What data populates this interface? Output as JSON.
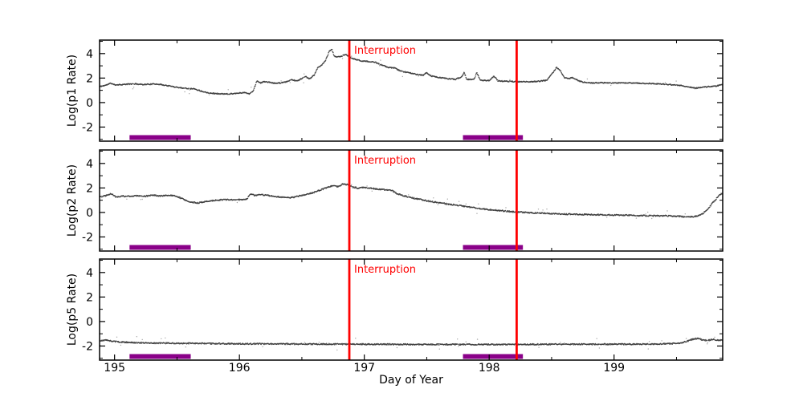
{
  "figure": {
    "xlabel": "Day of Year",
    "background": "#ffffff"
  },
  "chart_data": {
    "type": "scatter",
    "title": "",
    "xlabel": "Day of Year",
    "xlim": [
      194.88,
      199.87
    ],
    "ylim": [
      -3.15,
      5.1
    ],
    "x_major_ticks": [
      195,
      196,
      197,
      198,
      199
    ],
    "x_minor_tick_step": 0.5,
    "y_major_ticks": [
      -2,
      0,
      2,
      4
    ],
    "y_minor_tick_step": 1,
    "grid": false,
    "legend": false,
    "point_color": "#3a3a3a",
    "outlier_color": "#9b9b9b",
    "axis_color": "#000000",
    "panels": [
      {
        "name": "p1",
        "ylabel": "Log(p1 Rate)",
        "noise": 0.04,
        "seed": 11,
        "points": [
          [
            194.88,
            1.3
          ],
          [
            194.93,
            1.42
          ],
          [
            194.97,
            1.58
          ],
          [
            195.0,
            1.45
          ],
          [
            195.06,
            1.47
          ],
          [
            195.1,
            1.5
          ],
          [
            195.16,
            1.53
          ],
          [
            195.22,
            1.48
          ],
          [
            195.28,
            1.5
          ],
          [
            195.34,
            1.52
          ],
          [
            195.4,
            1.42
          ],
          [
            195.46,
            1.32
          ],
          [
            195.52,
            1.22
          ],
          [
            195.58,
            1.16
          ],
          [
            195.64,
            1.12
          ],
          [
            195.7,
            0.92
          ],
          [
            195.76,
            0.78
          ],
          [
            195.82,
            0.73
          ],
          [
            195.88,
            0.7
          ],
          [
            195.94,
            0.73
          ],
          [
            196.0,
            0.78
          ],
          [
            196.04,
            0.82
          ],
          [
            196.08,
            0.72
          ],
          [
            196.11,
            0.95
          ],
          [
            196.14,
            1.78
          ],
          [
            196.17,
            1.6
          ],
          [
            196.2,
            1.72
          ],
          [
            196.24,
            1.65
          ],
          [
            196.28,
            1.58
          ],
          [
            196.33,
            1.6
          ],
          [
            196.38,
            1.7
          ],
          [
            196.42,
            1.88
          ],
          [
            196.46,
            1.75
          ],
          [
            196.5,
            1.98
          ],
          [
            196.53,
            2.12
          ],
          [
            196.56,
            1.92
          ],
          [
            196.6,
            2.25
          ],
          [
            196.63,
            2.9
          ],
          [
            196.66,
            3.05
          ],
          [
            196.69,
            3.45
          ],
          [
            196.72,
            4.2
          ],
          [
            196.74,
            4.35
          ],
          [
            196.76,
            3.78
          ],
          [
            196.79,
            3.72
          ],
          [
            196.82,
            3.8
          ],
          [
            196.85,
            3.95
          ],
          [
            196.88,
            3.72
          ],
          [
            196.92,
            3.55
          ],
          [
            196.97,
            3.42
          ],
          [
            197.03,
            3.35
          ],
          [
            197.09,
            3.28
          ],
          [
            197.14,
            3.05
          ],
          [
            197.19,
            2.88
          ],
          [
            197.24,
            2.83
          ],
          [
            197.29,
            2.58
          ],
          [
            197.35,
            2.45
          ],
          [
            197.41,
            2.32
          ],
          [
            197.47,
            2.22
          ],
          [
            197.5,
            2.45
          ],
          [
            197.53,
            2.18
          ],
          [
            197.6,
            2.05
          ],
          [
            197.67,
            1.95
          ],
          [
            197.73,
            1.9
          ],
          [
            197.78,
            2.1
          ],
          [
            197.8,
            2.5
          ],
          [
            197.82,
            1.88
          ],
          [
            197.88,
            1.9
          ],
          [
            197.9,
            2.45
          ],
          [
            197.93,
            1.83
          ],
          [
            198.0,
            1.8
          ],
          [
            198.04,
            2.15
          ],
          [
            198.07,
            1.78
          ],
          [
            198.13,
            1.74
          ],
          [
            198.19,
            1.72
          ],
          [
            198.25,
            1.7
          ],
          [
            198.32,
            1.7
          ],
          [
            198.4,
            1.74
          ],
          [
            198.46,
            1.82
          ],
          [
            198.5,
            2.3
          ],
          [
            198.54,
            2.88
          ],
          [
            198.57,
            2.6
          ],
          [
            198.6,
            2.05
          ],
          [
            198.64,
            1.95
          ],
          [
            198.67,
            2.05
          ],
          [
            198.71,
            1.8
          ],
          [
            198.76,
            1.66
          ],
          [
            198.82,
            1.6
          ],
          [
            198.9,
            1.63
          ],
          [
            198.98,
            1.58
          ],
          [
            199.06,
            1.62
          ],
          [
            199.14,
            1.6
          ],
          [
            199.22,
            1.57
          ],
          [
            199.3,
            1.55
          ],
          [
            199.38,
            1.52
          ],
          [
            199.46,
            1.45
          ],
          [
            199.54,
            1.38
          ],
          [
            199.6,
            1.28
          ],
          [
            199.65,
            1.17
          ],
          [
            199.7,
            1.25
          ],
          [
            199.76,
            1.3
          ],
          [
            199.82,
            1.35
          ],
          [
            199.87,
            1.48
          ]
        ]
      },
      {
        "name": "p2",
        "ylabel": "Log(p2 Rate)",
        "noise": 0.05,
        "seed": 22,
        "points": [
          [
            194.88,
            1.3
          ],
          [
            194.93,
            1.38
          ],
          [
            194.97,
            1.55
          ],
          [
            195.01,
            1.28
          ],
          [
            195.07,
            1.33
          ],
          [
            195.13,
            1.3
          ],
          [
            195.19,
            1.38
          ],
          [
            195.25,
            1.33
          ],
          [
            195.31,
            1.42
          ],
          [
            195.37,
            1.35
          ],
          [
            195.43,
            1.4
          ],
          [
            195.48,
            1.35
          ],
          [
            195.52,
            1.22
          ],
          [
            195.57,
            1.0
          ],
          [
            195.62,
            0.82
          ],
          [
            195.67,
            0.78
          ],
          [
            195.72,
            0.88
          ],
          [
            195.78,
            0.97
          ],
          [
            195.84,
            1.02
          ],
          [
            195.9,
            1.05
          ],
          [
            195.96,
            1.02
          ],
          [
            196.02,
            1.05
          ],
          [
            196.06,
            1.08
          ],
          [
            196.09,
            1.55
          ],
          [
            196.12,
            1.38
          ],
          [
            196.16,
            1.45
          ],
          [
            196.21,
            1.42
          ],
          [
            196.26,
            1.35
          ],
          [
            196.31,
            1.28
          ],
          [
            196.36,
            1.22
          ],
          [
            196.41,
            1.2
          ],
          [
            196.47,
            1.32
          ],
          [
            196.53,
            1.45
          ],
          [
            196.59,
            1.62
          ],
          [
            196.65,
            1.85
          ],
          [
            196.7,
            2.02
          ],
          [
            196.75,
            2.18
          ],
          [
            196.79,
            2.1
          ],
          [
            196.83,
            2.32
          ],
          [
            196.87,
            2.28
          ],
          [
            196.91,
            2.08
          ],
          [
            196.95,
            1.98
          ],
          [
            197.0,
            2.05
          ],
          [
            197.05,
            1.98
          ],
          [
            197.11,
            1.9
          ],
          [
            197.17,
            1.85
          ],
          [
            197.22,
            1.8
          ],
          [
            197.26,
            1.55
          ],
          [
            197.31,
            1.38
          ],
          [
            197.37,
            1.22
          ],
          [
            197.43,
            1.1
          ],
          [
            197.5,
            0.95
          ],
          [
            197.58,
            0.82
          ],
          [
            197.66,
            0.7
          ],
          [
            197.74,
            0.6
          ],
          [
            197.82,
            0.48
          ],
          [
            197.9,
            0.35
          ],
          [
            197.98,
            0.25
          ],
          [
            198.06,
            0.18
          ],
          [
            198.14,
            0.1
          ],
          [
            198.22,
            0.04
          ],
          [
            198.32,
            -0.02
          ],
          [
            198.42,
            -0.06
          ],
          [
            198.52,
            -0.1
          ],
          [
            198.62,
            -0.14
          ],
          [
            198.72,
            -0.16
          ],
          [
            198.82,
            -0.18
          ],
          [
            198.92,
            -0.2
          ],
          [
            199.02,
            -0.21
          ],
          [
            199.12,
            -0.23
          ],
          [
            199.22,
            -0.25
          ],
          [
            199.32,
            -0.27
          ],
          [
            199.42,
            -0.28
          ],
          [
            199.52,
            -0.32
          ],
          [
            199.6,
            -0.38
          ],
          [
            199.66,
            -0.3
          ],
          [
            199.71,
            -0.1
          ],
          [
            199.76,
            0.4
          ],
          [
            199.8,
            0.9
          ],
          [
            199.84,
            1.35
          ],
          [
            199.87,
            1.62
          ]
        ]
      },
      {
        "name": "p5",
        "ylabel": "Log(p5 Rate)",
        "noise": 0.05,
        "seed": 33,
        "points": [
          [
            194.88,
            -1.58
          ],
          [
            194.93,
            -1.52
          ],
          [
            194.98,
            -1.6
          ],
          [
            195.05,
            -1.68
          ],
          [
            195.15,
            -1.72
          ],
          [
            195.3,
            -1.76
          ],
          [
            195.5,
            -1.78
          ],
          [
            195.75,
            -1.8
          ],
          [
            196.0,
            -1.82
          ],
          [
            196.3,
            -1.83
          ],
          [
            196.6,
            -1.84
          ],
          [
            196.9,
            -1.85
          ],
          [
            197.2,
            -1.86
          ],
          [
            197.5,
            -1.87
          ],
          [
            197.8,
            -1.87
          ],
          [
            198.1,
            -1.88
          ],
          [
            198.4,
            -1.86
          ],
          [
            198.7,
            -1.86
          ],
          [
            199.0,
            -1.85
          ],
          [
            199.2,
            -1.85
          ],
          [
            199.4,
            -1.82
          ],
          [
            199.52,
            -1.78
          ],
          [
            199.58,
            -1.62
          ],
          [
            199.63,
            -1.45
          ],
          [
            199.67,
            -1.38
          ],
          [
            199.71,
            -1.5
          ],
          [
            199.75,
            -1.55
          ],
          [
            199.79,
            -1.45
          ],
          [
            199.83,
            -1.52
          ],
          [
            199.87,
            -1.52
          ]
        ]
      }
    ],
    "annotations": {
      "interruption_label": "Interruption",
      "interruption_lines_x": [
        196.88,
        198.22
      ],
      "interruption_color": "#ff0000",
      "coverage_bars_x": [
        [
          195.12,
          195.61
        ],
        [
          197.79,
          198.27
        ]
      ],
      "coverage_bar_color": "#8a0189"
    }
  }
}
